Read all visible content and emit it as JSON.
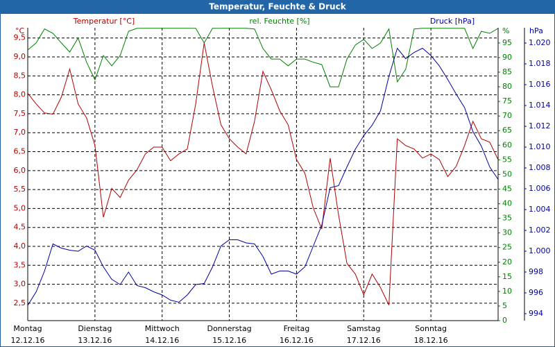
{
  "chart_data": {
    "type": "line",
    "title": "Temperatur, Feuchte & Druck",
    "y_label": "°C",
    "y2_label": "%",
    "y3_label": "hPa",
    "x_labels": [
      {
        "day": "Montag",
        "date": "12.12.16"
      },
      {
        "day": "Dienstag",
        "date": "13.12.16"
      },
      {
        "day": "Mittwoch",
        "date": "14.12.16"
      },
      {
        "day": "Donnerstag",
        "date": "15.12.16"
      },
      {
        "day": "Freitag",
        "date": "16.12.16"
      },
      {
        "day": "Samstag",
        "date": "17.12.16"
      },
      {
        "day": "Sonntag",
        "date": "18.12.16"
      }
    ],
    "ylim": [
      2.04,
      9.77
    ],
    "yticks": [
      {
        "value": 2.5,
        "label": "2,5"
      },
      {
        "value": 3.0,
        "label": "3,0"
      },
      {
        "value": 3.5,
        "label": "3,5"
      },
      {
        "value": 4.0,
        "label": "4,0"
      },
      {
        "value": 4.5,
        "label": "4,5"
      },
      {
        "value": 5.0,
        "label": "5,0"
      },
      {
        "value": 5.5,
        "label": "5,5"
      },
      {
        "value": 6.0,
        "label": "6,0"
      },
      {
        "value": 6.5,
        "label": "6,5"
      },
      {
        "value": 7.0,
        "label": "7,0"
      },
      {
        "value": 7.5,
        "label": "7,5"
      },
      {
        "value": 8.0,
        "label": "8,0"
      },
      {
        "value": 8.5,
        "label": "8,5"
      },
      {
        "value": 9.0,
        "label": "9,0"
      },
      {
        "value": 9.5,
        "label": "9,5"
      }
    ],
    "y2lim": [
      0,
      100.2
    ],
    "y2ticks": [
      0,
      5,
      10,
      15,
      20,
      25,
      30,
      35,
      40,
      45,
      50,
      55,
      60,
      65,
      70,
      75,
      80,
      85,
      90,
      95
    ],
    "y3lim": [
      993.33,
      1021.47
    ],
    "y3ticks": [
      994,
      996,
      998,
      {
        "value": 1000,
        "label": "1.000"
      },
      {
        "value": 1002,
        "label": "1.002"
      },
      {
        "value": 1004,
        "label": "1.004"
      },
      {
        "value": 1006,
        "label": "1.006"
      },
      {
        "value": 1008,
        "label": "1.008"
      },
      {
        "value": 1010,
        "label": "1.010"
      },
      {
        "value": 1012,
        "label": "1.012"
      },
      {
        "value": 1014,
        "label": "1.014"
      },
      {
        "value": 1016,
        "label": "1.016"
      },
      {
        "value": 1018,
        "label": "1.018"
      },
      {
        "value": 1020,
        "label": "1.020"
      }
    ],
    "grid": true,
    "series": [
      {
        "name": "Temperatur [°C]",
        "color": "#b00000",
        "axis": "y",
        "values": [
          8.04,
          7.76,
          7.52,
          7.49,
          7.94,
          8.68,
          7.76,
          7.39,
          6.66,
          4.77,
          5.53,
          5.29,
          5.75,
          6.02,
          6.44,
          6.62,
          6.62,
          6.26,
          6.44,
          6.57,
          7.76,
          9.37,
          8.22,
          7.21,
          6.84,
          6.62,
          6.44,
          7.3,
          8.62,
          8.13,
          7.58,
          7.21,
          6.29,
          5.93,
          5.01,
          4.46,
          6.33,
          4.83,
          3.55,
          3.27,
          2.72,
          3.27,
          2.91,
          2.45,
          6.84,
          6.66,
          6.57,
          6.33,
          6.44,
          6.29,
          5.84,
          6.11,
          6.66,
          7.3,
          6.84,
          6.75,
          6.29
        ]
      },
      {
        "name": "rel. Feuchte [%]",
        "color": "#008000",
        "axis": "y2",
        "values": [
          92.6,
          95,
          99.8,
          98.3,
          95,
          91.9,
          96.7,
          88.4,
          82.4,
          90.7,
          87.2,
          90.7,
          99,
          100,
          100,
          100,
          100,
          100,
          100,
          100,
          100,
          95,
          100,
          100,
          100,
          100,
          100,
          99.8,
          93.1,
          89.5,
          89.5,
          87.2,
          89.5,
          89.5,
          88.4,
          87.6,
          80,
          80,
          89.5,
          94.3,
          96.2,
          93.1,
          95,
          99.8,
          81.7,
          86,
          99.8,
          100,
          100,
          100,
          100,
          100,
          100,
          93.1,
          99,
          98.3,
          100
        ]
      },
      {
        "name": "Druck [hPa]",
        "color": "#0000a0",
        "axis": "y3",
        "values": [
          994.8,
          996.1,
          998.1,
          1000.7,
          1000.3,
          1000.1,
          1000.0,
          1000.5,
          1000.1,
          998.5,
          997.3,
          996.8,
          998.0,
          996.7,
          996.5,
          996.1,
          995.8,
          995.3,
          995.1,
          995.8,
          996.8,
          996.9,
          998.5,
          1000.5,
          1001.1,
          1001.1,
          1000.8,
          1000.7,
          999.5,
          997.8,
          998.1,
          998.1,
          997.8,
          998.5,
          1000.5,
          1002.5,
          1006.1,
          1006.3,
          1008.1,
          1009.8,
          1011.1,
          1012.1,
          1013.5,
          1016.8,
          1019.5,
          1018.5,
          1019.1,
          1019.5,
          1018.8,
          1017.8,
          1016.5,
          1015.1,
          1013.8,
          1011.5,
          1010.1,
          1008.1,
          1006.9
        ]
      }
    ]
  }
}
